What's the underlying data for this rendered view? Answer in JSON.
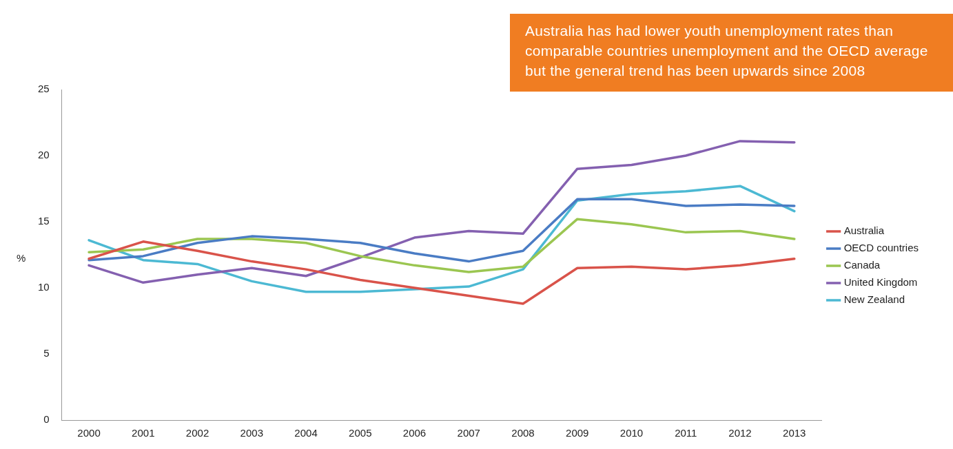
{
  "chart_data": {
    "type": "line",
    "categories": [
      "2000",
      "2001",
      "2002",
      "2003",
      "2004",
      "2005",
      "2006",
      "2007",
      "2008",
      "2009",
      "2010",
      "2011",
      "2012",
      "2013"
    ],
    "series": [
      {
        "name": "Australia",
        "color": "#d9534a",
        "values": [
          12.2,
          13.5,
          12.8,
          12.0,
          11.4,
          10.6,
          10.0,
          9.4,
          8.8,
          11.5,
          11.6,
          11.4,
          11.7,
          12.2
        ]
      },
      {
        "name": "OECD countries",
        "color": "#4a7cc4",
        "values": [
          12.1,
          12.4,
          13.4,
          13.9,
          13.7,
          13.4,
          12.6,
          12.0,
          12.8,
          16.7,
          16.7,
          16.2,
          16.3,
          16.2
        ]
      },
      {
        "name": "Canada",
        "color": "#9bc651",
        "values": [
          12.7,
          12.9,
          13.7,
          13.7,
          13.4,
          12.4,
          11.7,
          11.2,
          11.6,
          15.2,
          14.8,
          14.2,
          14.3,
          13.7
        ]
      },
      {
        "name": "United Kingdom",
        "color": "#8460b0",
        "values": [
          11.7,
          10.4,
          11.0,
          11.5,
          10.9,
          12.3,
          13.8,
          14.3,
          14.1,
          19.0,
          19.3,
          20.0,
          21.1,
          21.0
        ]
      },
      {
        "name": "New Zealand",
        "color": "#4cb9d3",
        "values": [
          13.6,
          12.1,
          11.8,
          10.5,
          9.7,
          9.7,
          9.9,
          10.1,
          11.4,
          16.6,
          17.1,
          17.3,
          17.7,
          15.8
        ]
      }
    ],
    "ylabel": "%",
    "ylim": [
      0,
      25
    ],
    "yticks": [
      0,
      5,
      10,
      15,
      20,
      25
    ],
    "legend": "right",
    "grid": false,
    "marker": "none",
    "line_style": "solid",
    "annotations": [
      "Australia has had lower youth unemployment rates than comparable countries unemployment and the OECD average but the general trend has been upwards since 2008"
    ]
  }
}
